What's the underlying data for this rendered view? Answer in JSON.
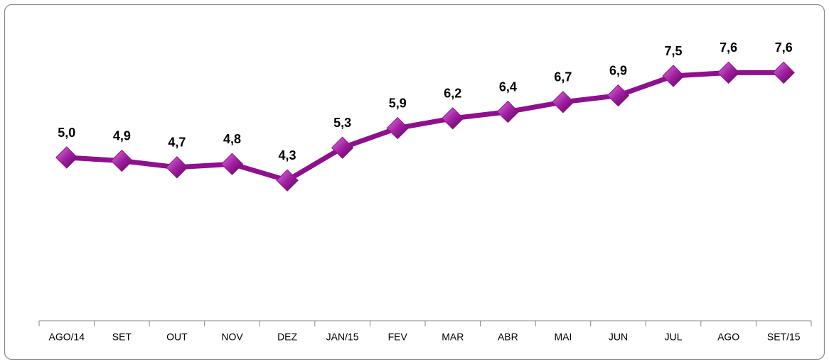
{
  "chart_data": {
    "type": "line",
    "categories": [
      "AGO/14",
      "SET",
      "OUT",
      "NOV",
      "DEZ",
      "JAN/15",
      "FEV",
      "MAR",
      "ABR",
      "MAI",
      "JUN",
      "JUL",
      "AGO",
      "SET/15"
    ],
    "values": [
      5.0,
      4.9,
      4.7,
      4.8,
      4.3,
      5.3,
      5.9,
      6.2,
      6.4,
      6.7,
      6.9,
      7.5,
      7.6,
      7.6
    ],
    "value_labels": [
      "5,0",
      "4,9",
      "4,7",
      "4,8",
      "4,3",
      "5,3",
      "5,9",
      "6,2",
      "6,4",
      "6,7",
      "6,9",
      "7,5",
      "7,6",
      "7,6"
    ],
    "color": "#8e108e"
  }
}
